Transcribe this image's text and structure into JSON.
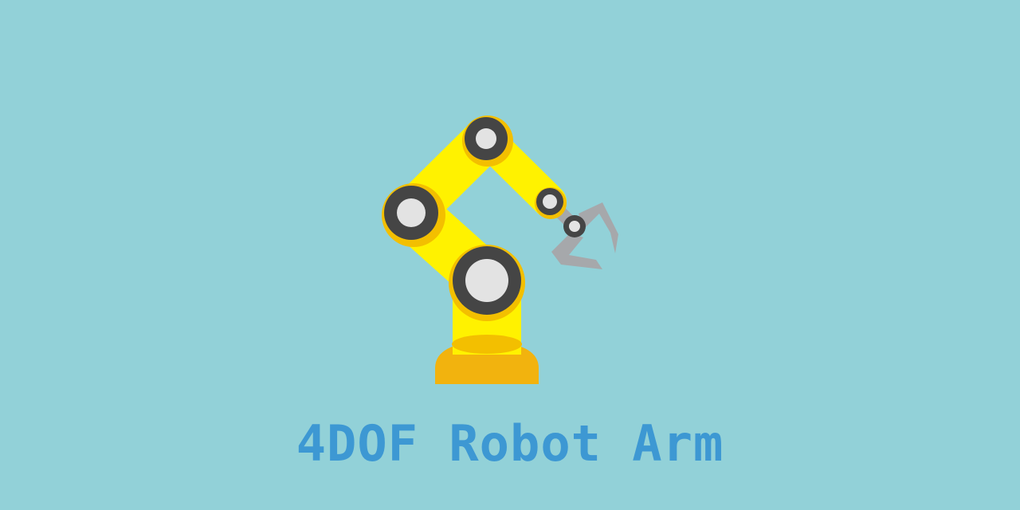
{
  "title": "4DOF Robot Arm",
  "colors": {
    "background": "#92d1d8",
    "title": "#3d98d3",
    "arm_yellow": "#fff200",
    "arm_shade": "#f3bf00",
    "base": "#f2b30e",
    "joint_ring": "#454545",
    "joint_center": "#e3e3e3",
    "gripper": "#a6a8ab"
  },
  "icons": {
    "illustration": "robot-arm-icon"
  }
}
